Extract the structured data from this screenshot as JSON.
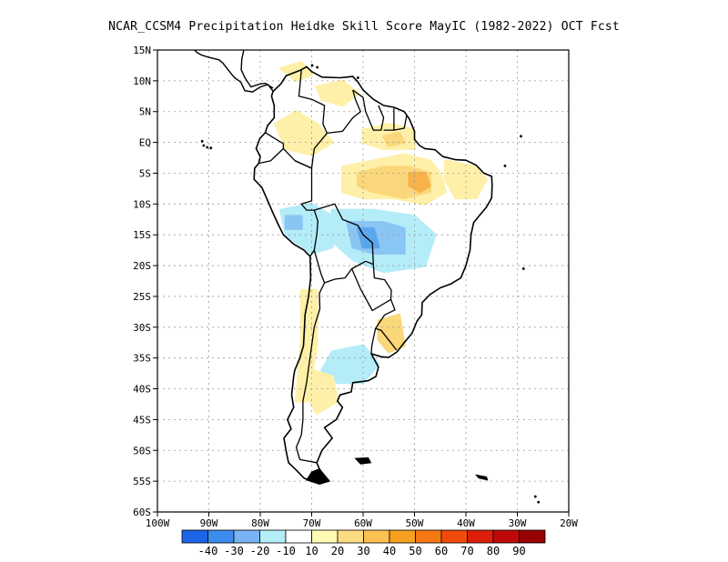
{
  "title": "NCAR_CCSM4  Precipitation Heidke Skill Score MayIC (1982-2022) OCT Fcst",
  "map": {
    "lon_range": [
      -100,
      -20
    ],
    "lat_range": [
      -60,
      15
    ],
    "lon_ticks": [
      {
        "value": -100,
        "label": "100W"
      },
      {
        "value": -90,
        "label": "90W"
      },
      {
        "value": -80,
        "label": "80W"
      },
      {
        "value": -70,
        "label": "70W"
      },
      {
        "value": -60,
        "label": "60W"
      },
      {
        "value": -50,
        "label": "50W"
      },
      {
        "value": -40,
        "label": "40W"
      },
      {
        "value": -30,
        "label": "30W"
      },
      {
        "value": -20,
        "label": "20W"
      }
    ],
    "lat_ticks": [
      {
        "value": 15,
        "label": "15N"
      },
      {
        "value": 10,
        "label": "10N"
      },
      {
        "value": 5,
        "label": "5N"
      },
      {
        "value": 0,
        "label": "EQ"
      },
      {
        "value": -5,
        "label": "5S"
      },
      {
        "value": -10,
        "label": "10S"
      },
      {
        "value": -15,
        "label": "15S"
      },
      {
        "value": -20,
        "label": "20S"
      },
      {
        "value": -25,
        "label": "25S"
      },
      {
        "value": -30,
        "label": "30S"
      },
      {
        "value": -35,
        "label": "35S"
      },
      {
        "value": -40,
        "label": "40S"
      },
      {
        "value": -45,
        "label": "45S"
      },
      {
        "value": -50,
        "label": "50S"
      },
      {
        "value": -55,
        "label": "55S"
      },
      {
        "value": -60,
        "label": "60S"
      }
    ],
    "gridlines": true,
    "skill_regions": [
      {
        "name": "amazon-central",
        "class": "10 to 20",
        "color": "#fef0a8",
        "polygon": [
          [
            -64,
            -4
          ],
          [
            -58,
            -3
          ],
          [
            -52,
            -2
          ],
          [
            -47,
            -3
          ],
          [
            -45,
            -5
          ],
          [
            -44,
            -8
          ],
          [
            -48,
            -10
          ],
          [
            -54,
            -9
          ],
          [
            -60,
            -9
          ],
          [
            -64,
            -8
          ]
        ]
      },
      {
        "name": "amazon-core",
        "class": "20 to 30",
        "color": "#fbd77b",
        "polygon": [
          [
            -61,
            -5
          ],
          [
            -56,
            -4
          ],
          [
            -51,
            -4
          ],
          [
            -47,
            -5
          ],
          [
            -47,
            -8
          ],
          [
            -52,
            -9
          ],
          [
            -58,
            -8
          ],
          [
            -61,
            -7
          ]
        ]
      },
      {
        "name": "para-max",
        "class": "30 to 40",
        "color": "#f7b24a",
        "polygon": [
          [
            -51,
            -5
          ],
          [
            -48,
            -5
          ],
          [
            -47,
            -7
          ],
          [
            -49,
            -8
          ],
          [
            -51,
            -7
          ]
        ]
      },
      {
        "name": "guianas",
        "class": "10 to 20",
        "color": "#fef0a8",
        "polygon": [
          [
            -60,
            2
          ],
          [
            -55,
            3
          ],
          [
            -50,
            2
          ],
          [
            -50,
            -1
          ],
          [
            -56,
            -1
          ],
          [
            -60,
            0
          ]
        ]
      },
      {
        "name": "guianas-core",
        "class": "20 to 30",
        "color": "#fbd77b",
        "polygon": [
          [
            -56,
            1
          ],
          [
            -53,
            1.5
          ],
          [
            -52,
            0
          ],
          [
            -55,
            -0.5
          ]
        ]
      },
      {
        "name": "ne-brazil",
        "class": "10 to 20",
        "color": "#fef0a8",
        "polygon": [
          [
            -44,
            -3
          ],
          [
            -38,
            -4
          ],
          [
            -36,
            -6
          ],
          [
            -38,
            -9
          ],
          [
            -42,
            -9
          ],
          [
            -44,
            -6
          ]
        ]
      },
      {
        "name": "colombia",
        "class": "10 to 20",
        "color": "#fef0a8",
        "polygon": [
          [
            -77,
            3
          ],
          [
            -73,
            5
          ],
          [
            -69,
            3
          ],
          [
            -66,
            0
          ],
          [
            -70,
            -2
          ],
          [
            -75,
            -1
          ]
        ]
      },
      {
        "name": "venezuela",
        "class": "10 to 20",
        "color": "#fef0a8",
        "polygon": [
          [
            -69,
            9
          ],
          [
            -64,
            10
          ],
          [
            -61,
            8
          ],
          [
            -64,
            6
          ],
          [
            -68,
            7
          ]
        ]
      },
      {
        "name": "caribbean",
        "class": "10 to 20",
        "color": "#fef0a8",
        "polygon": [
          [
            -76,
            12
          ],
          [
            -72,
            13
          ],
          [
            -70,
            11
          ],
          [
            -73,
            10
          ]
        ]
      },
      {
        "name": "peru-highlands",
        "class": "-10 to -20",
        "color": "#b4ecf8",
        "polygon": [
          [
            -76,
            -11
          ],
          [
            -70,
            -10
          ],
          [
            -66,
            -12
          ],
          [
            -66,
            -17
          ],
          [
            -70,
            -18
          ],
          [
            -75,
            -15
          ]
        ]
      },
      {
        "name": "bolivia-brazil",
        "class": "-10 to -20",
        "color": "#b4ecf8",
        "polygon": [
          [
            -66,
            -11
          ],
          [
            -58,
            -11
          ],
          [
            -50,
            -12
          ],
          [
            -46,
            -15
          ],
          [
            -48,
            -20
          ],
          [
            -56,
            -21
          ],
          [
            -62,
            -19
          ],
          [
            -66,
            -16
          ]
        ]
      },
      {
        "name": "bolivia-core",
        "class": "-20 to -30",
        "color": "#8ac6f4",
        "polygon": [
          [
            -63,
            -13
          ],
          [
            -56,
            -13
          ],
          [
            -52,
            -14
          ],
          [
            -52,
            -18
          ],
          [
            -58,
            -18
          ],
          [
            -62,
            -17
          ]
        ]
      },
      {
        "name": "bolivia-min",
        "class": "-30 to -40",
        "color": "#5aa6ee",
        "polygon": [
          [
            -61,
            -14
          ],
          [
            -58,
            -14
          ],
          [
            -57,
            -17
          ],
          [
            -60,
            -17
          ]
        ]
      },
      {
        "name": "peru-min",
        "class": "-20 to -30",
        "color": "#8ac6f4",
        "polygon": [
          [
            -75,
            -12
          ],
          [
            -72,
            -12
          ],
          [
            -72,
            -14
          ],
          [
            -75,
            -14
          ]
        ]
      },
      {
        "name": "argentina-south",
        "class": "-10 to -20",
        "color": "#b4ecf8",
        "polygon": [
          [
            -66,
            -34
          ],
          [
            -60,
            -33
          ],
          [
            -57,
            -36
          ],
          [
            -60,
            -39
          ],
          [
            -65,
            -39
          ],
          [
            -68,
            -37
          ]
        ]
      },
      {
        "name": "chile-andes",
        "class": "10 to 20",
        "color": "#fef0a8",
        "polygon": [
          [
            -72,
            -24
          ],
          [
            -69,
            -24
          ],
          [
            -69,
            -33
          ],
          [
            -71,
            -42
          ],
          [
            -73,
            -42
          ],
          [
            -72,
            -32
          ]
        ]
      },
      {
        "name": "uruguay",
        "class": "20 to 30",
        "color": "#fbd77b",
        "polygon": [
          [
            -57,
            -29
          ],
          [
            -53,
            -28
          ],
          [
            -52,
            -33
          ],
          [
            -55,
            -34
          ],
          [
            -57,
            -32
          ]
        ]
      },
      {
        "name": "patagonia",
        "class": "10 to 20",
        "color": "#fef0a8",
        "polygon": [
          [
            -70,
            -37
          ],
          [
            -66,
            -38
          ],
          [
            -65,
            -42
          ],
          [
            -69,
            -44
          ],
          [
            -71,
            -41
          ]
        ]
      }
    ]
  },
  "colorbar": {
    "colors": [
      "#1e64e6",
      "#3c8cf0",
      "#78b4f4",
      "#b4ecf8",
      "#ffffff",
      "#fffab4",
      "#fcdc82",
      "#fac050",
      "#f5a01e",
      "#f57814",
      "#f04b0a",
      "#dc1e0a",
      "#be0a0a",
      "#960000"
    ],
    "labels": [
      "-40",
      "-30",
      "-20",
      "-10",
      "10",
      "20",
      "30",
      "40",
      "50",
      "60",
      "70",
      "80",
      "90"
    ]
  }
}
